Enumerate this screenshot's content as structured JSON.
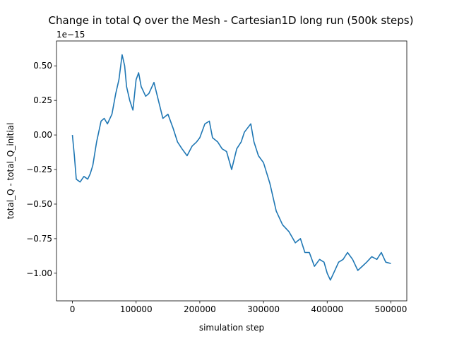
{
  "chart_data": {
    "type": "line",
    "title": "Change in total Q over the Mesh - Cartesian1D long run (500k steps)",
    "xlabel": "simulation step",
    "ylabel": "total_Q - total_Q_initial",
    "y_offset_label": "1e−15",
    "xlim": [
      -25000,
      525000
    ],
    "ylim": [
      -1.2,
      0.68
    ],
    "y_scale_factor": "1e-15",
    "xticks": [
      0,
      100000,
      200000,
      300000,
      400000,
      500000
    ],
    "xtick_labels": [
      "0",
      "100000",
      "200000",
      "300000",
      "400000",
      "500000"
    ],
    "yticks": [
      0.5,
      0.25,
      0.0,
      -0.25,
      -0.5,
      -0.75,
      -1.0
    ],
    "ytick_labels": [
      "0.50",
      "0.25",
      "0.00",
      "−0.25",
      "−0.50",
      "−0.75",
      "−1.00"
    ],
    "grid": false,
    "series": [
      {
        "color": "#1f77b4",
        "x": [
          0,
          3000,
          6000,
          12000,
          18000,
          24000,
          28000,
          32000,
          38000,
          45000,
          50000,
          55000,
          62000,
          68000,
          73000,
          78000,
          82000,
          85000,
          90000,
          95000,
          100000,
          104000,
          108000,
          115000,
          120000,
          128000,
          135000,
          142000,
          150000,
          158000,
          165000,
          172000,
          180000,
          188000,
          195000,
          200000,
          208000,
          215000,
          220000,
          228000,
          235000,
          242000,
          250000,
          258000,
          265000,
          270000,
          275000,
          280000,
          285000,
          292000,
          300000,
          310000,
          320000,
          330000,
          340000,
          350000,
          358000,
          365000,
          372000,
          380000,
          388000,
          395000,
          400000,
          405000,
          410000,
          418000,
          425000,
          432000,
          440000,
          448000,
          455000,
          462000,
          470000,
          478000,
          485000,
          492000,
          500000
        ],
        "y": [
          0.0,
          -0.15,
          -0.32,
          -0.34,
          -0.3,
          -0.32,
          -0.28,
          -0.22,
          -0.05,
          0.1,
          0.12,
          0.08,
          0.15,
          0.3,
          0.4,
          0.58,
          0.5,
          0.35,
          0.25,
          0.18,
          0.4,
          0.45,
          0.35,
          0.28,
          0.3,
          0.38,
          0.25,
          0.12,
          0.15,
          0.05,
          -0.05,
          -0.1,
          -0.15,
          -0.08,
          -0.05,
          -0.02,
          0.08,
          0.1,
          -0.02,
          -0.05,
          -0.1,
          -0.12,
          -0.25,
          -0.1,
          -0.05,
          0.02,
          0.05,
          0.08,
          -0.05,
          -0.15,
          -0.2,
          -0.35,
          -0.55,
          -0.65,
          -0.7,
          -0.78,
          -0.75,
          -0.85,
          -0.85,
          -0.95,
          -0.9,
          -0.92,
          -1.0,
          -1.05,
          -1.0,
          -0.92,
          -0.9,
          -0.85,
          -0.9,
          -0.98,
          -0.95,
          -0.92,
          -0.88,
          -0.9,
          -0.85,
          -0.92,
          -0.93
        ]
      }
    ]
  }
}
